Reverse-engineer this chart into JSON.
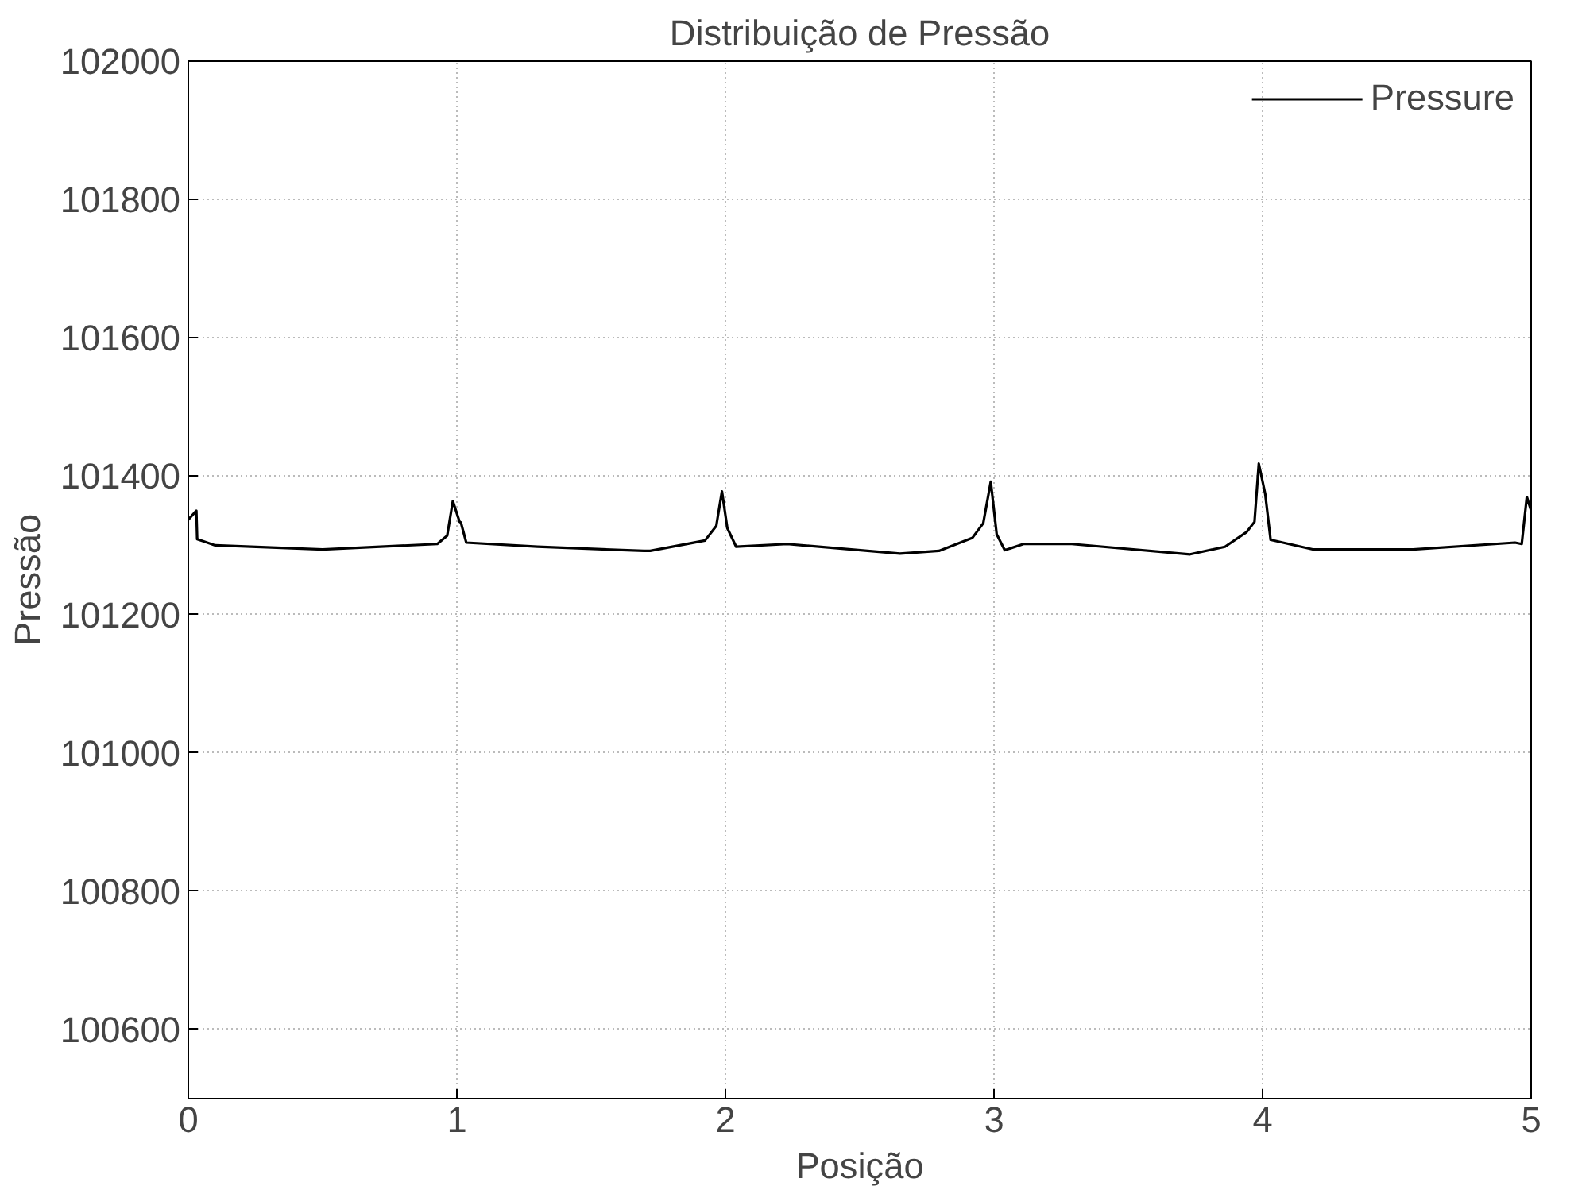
{
  "chart_data": {
    "type": "line",
    "title": "Distribuição de Pressão",
    "xlabel": "Posição",
    "ylabel": "Pressão",
    "xlim": [
      0,
      5
    ],
    "ylim": [
      100500,
      102000
    ],
    "xticks": [
      0,
      1,
      2,
      3,
      4,
      5
    ],
    "yticks": [
      {
        "value": 100500,
        "label": null
      },
      100600,
      100800,
      101000,
      101200,
      101400,
      101600,
      101800,
      102000
    ],
    "grid": true,
    "legend": "top right",
    "marker": "none",
    "line_style": "solid",
    "series": [
      {
        "name": "Pressure",
        "color": "#000000",
        "x": [
          0,
          0.03,
          0.033,
          0.1,
          0.5,
          0.927,
          0.964,
          0.985,
          1.01,
          1.015,
          1.035,
          1.3,
          1.696,
          1.72,
          1.924,
          1.966,
          1.987,
          2.007,
          2.04,
          2.23,
          2.65,
          2.795,
          2.92,
          2.96,
          2.988,
          3.01,
          3.04,
          3.11,
          3.29,
          3.73,
          3.86,
          3.94,
          3.97,
          3.986,
          4.01,
          4.03,
          4.19,
          4.56,
          4.94,
          4.965,
          4.984,
          5.0
        ],
        "values": [
          101337,
          101350,
          101309,
          101300,
          101294,
          101302,
          101314,
          101364,
          101334,
          101333,
          101304,
          101298,
          101292,
          101292,
          101307,
          101328,
          101378,
          101325,
          101298,
          101302,
          101288,
          101292,
          101311,
          101332,
          101392,
          101316,
          101293,
          101302,
          101302,
          101287,
          101298,
          101319,
          101334,
          101418,
          101374,
          101308,
          101294,
          101294,
          101304,
          101302,
          101370,
          101350
        ]
      }
    ]
  }
}
